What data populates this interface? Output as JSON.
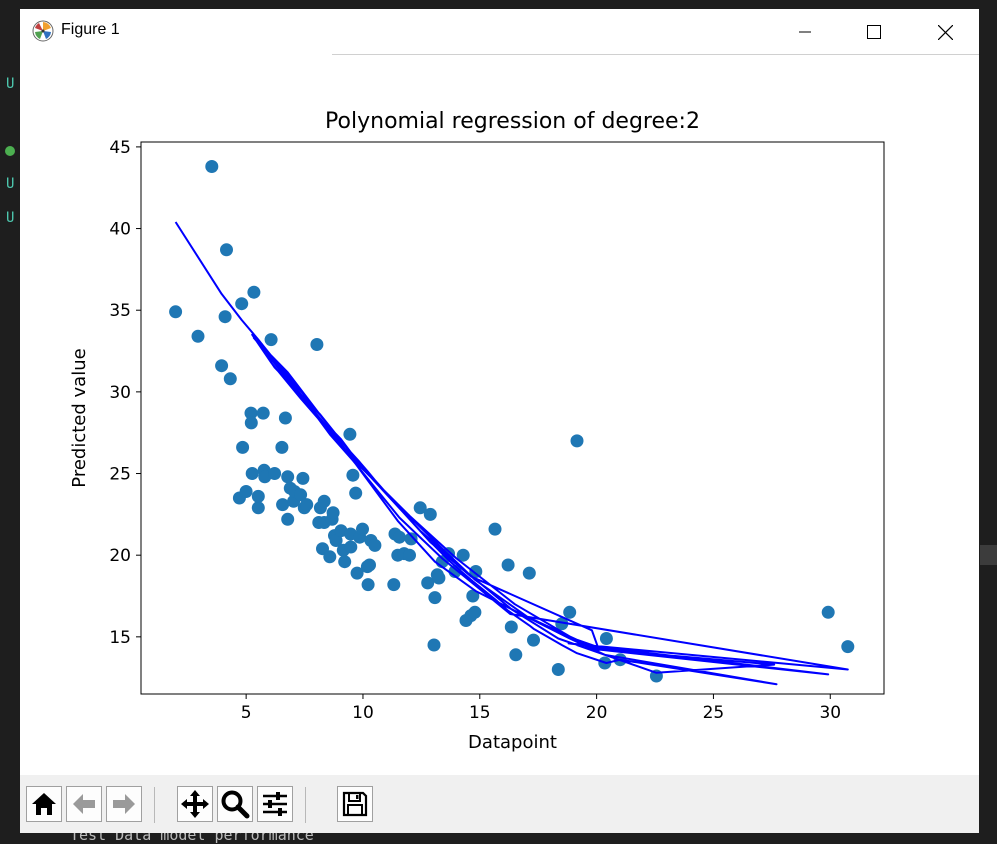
{
  "window": {
    "title": "Figure 1"
  },
  "toolbar": {
    "buttons": [
      "home-icon",
      "back-icon",
      "forward-icon",
      "pan-icon",
      "zoom-icon",
      "configure-icon",
      "save-icon"
    ]
  },
  "background": {
    "gutter_letters": [
      "U",
      "U",
      "U"
    ],
    "bottom_text": "Test Data model performance"
  },
  "colors": {
    "scatter": "#1f77b4",
    "line": "#0000ff",
    "axes": "#000000"
  },
  "chart_data": {
    "type": "scatter",
    "title": "Polynomial regression of degree:2",
    "xlabel": "Datapoint",
    "ylabel": "Predicted value",
    "xlim": [
      0.5,
      32.3
    ],
    "ylim": [
      11.5,
      45.3
    ],
    "xticks": [
      5,
      10,
      15,
      20,
      25,
      30
    ],
    "yticks": [
      15,
      20,
      25,
      30,
      35,
      40,
      45
    ],
    "grid": false,
    "legend": "none",
    "series": [
      {
        "type": "scatter",
        "points": [
          [
            1.98,
            34.9
          ],
          [
            2.94,
            33.4
          ],
          [
            3.53,
            43.8
          ],
          [
            3.95,
            31.6
          ],
          [
            4.1,
            34.6
          ],
          [
            4.16,
            38.7
          ],
          [
            4.32,
            30.8
          ],
          [
            4.81,
            35.4
          ],
          [
            4.85,
            26.6
          ],
          [
            4.71,
            23.5
          ],
          [
            5.0,
            23.9
          ],
          [
            5.21,
            28.7
          ],
          [
            5.22,
            28.1
          ],
          [
            5.26,
            25.0
          ],
          [
            5.33,
            36.1
          ],
          [
            5.52,
            22.9
          ],
          [
            5.52,
            23.6
          ],
          [
            5.73,
            28.7
          ],
          [
            5.77,
            25.2
          ],
          [
            5.8,
            24.8
          ],
          [
            6.07,
            33.2
          ],
          [
            6.22,
            25.0
          ],
          [
            6.53,
            26.6
          ],
          [
            6.56,
            23.1
          ],
          [
            6.68,
            28.4
          ],
          [
            6.78,
            24.8
          ],
          [
            6.78,
            22.2
          ],
          [
            6.89,
            24.1
          ],
          [
            7.03,
            23.3
          ],
          [
            7.07,
            23.9
          ],
          [
            7.33,
            23.7
          ],
          [
            7.43,
            24.7
          ],
          [
            7.49,
            22.9
          ],
          [
            7.59,
            23.1
          ],
          [
            8.03,
            32.9
          ],
          [
            8.11,
            22.0
          ],
          [
            8.18,
            22.9
          ],
          [
            8.27,
            20.4
          ],
          [
            8.34,
            22.0
          ],
          [
            8.34,
            23.3
          ],
          [
            8.58,
            19.9
          ],
          [
            8.68,
            22.2
          ],
          [
            8.72,
            22.6
          ],
          [
            8.78,
            21.2
          ],
          [
            8.85,
            20.9
          ],
          [
            9.06,
            21.5
          ],
          [
            9.16,
            20.3
          ],
          [
            9.22,
            19.6
          ],
          [
            9.44,
            27.4
          ],
          [
            9.48,
            20.5
          ],
          [
            9.47,
            21.3
          ],
          [
            9.57,
            24.9
          ],
          [
            9.69,
            23.8
          ],
          [
            9.75,
            18.9
          ],
          [
            9.86,
            21.1
          ],
          [
            9.98,
            21.6
          ],
          [
            10.19,
            19.3
          ],
          [
            10.22,
            18.2
          ],
          [
            10.28,
            19.4
          ],
          [
            10.34,
            20.9
          ],
          [
            10.51,
            20.6
          ],
          [
            11.32,
            18.2
          ],
          [
            11.37,
            21.3
          ],
          [
            11.49,
            20.0
          ],
          [
            11.56,
            21.1
          ],
          [
            11.76,
            20.1
          ],
          [
            11.99,
            20.0
          ],
          [
            12.06,
            21.0
          ],
          [
            12.45,
            22.9
          ],
          [
            12.77,
            18.3
          ],
          [
            12.88,
            22.5
          ],
          [
            13.04,
            14.5
          ],
          [
            13.08,
            17.4
          ],
          [
            13.18,
            18.8
          ],
          [
            13.25,
            18.6
          ],
          [
            13.39,
            19.6
          ],
          [
            13.66,
            20.1
          ],
          [
            13.94,
            19.0
          ],
          [
            14.29,
            20.0
          ],
          [
            14.41,
            16.0
          ],
          [
            14.62,
            16.3
          ],
          [
            14.7,
            17.5
          ],
          [
            14.79,
            16.5
          ],
          [
            14.83,
            19.0
          ],
          [
            15.65,
            21.6
          ],
          [
            16.21,
            19.4
          ],
          [
            16.35,
            15.6
          ],
          [
            16.54,
            13.9
          ],
          [
            17.12,
            18.9
          ],
          [
            17.3,
            14.8
          ],
          [
            18.36,
            13.0
          ],
          [
            18.51,
            15.8
          ],
          [
            18.85,
            16.5
          ],
          [
            19.16,
            27.0
          ],
          [
            20.35,
            13.4
          ],
          [
            20.42,
            14.9
          ],
          [
            21.01,
            13.6
          ],
          [
            22.56,
            12.6
          ],
          [
            29.91,
            16.5
          ],
          [
            30.75,
            14.4
          ]
        ]
      },
      {
        "type": "line",
        "points": [
          [
            1.98,
            40.4
          ],
          [
            3.95,
            36.0
          ],
          [
            4.81,
            34.4
          ],
          [
            5.52,
            33.2
          ],
          [
            5.8,
            32.7
          ],
          [
            6.53,
            31.4
          ],
          [
            6.68,
            31.2
          ],
          [
            7.07,
            30.5
          ],
          [
            7.43,
            29.9
          ],
          [
            8.03,
            28.8
          ],
          [
            8.34,
            28.3
          ],
          [
            8.72,
            27.6
          ],
          [
            9.06,
            27.1
          ],
          [
            9.48,
            26.3
          ],
          [
            9.86,
            25.7
          ],
          [
            10.22,
            25.1
          ],
          [
            10.51,
            24.6
          ],
          [
            11.37,
            23.2
          ],
          [
            11.76,
            22.6
          ],
          [
            12.06,
            22.1
          ],
          [
            12.77,
            21.0
          ],
          [
            13.18,
            20.4
          ],
          [
            13.66,
            19.7
          ],
          [
            14.29,
            18.9
          ],
          [
            14.7,
            18.4
          ],
          [
            15.65,
            17.3
          ],
          [
            16.21,
            16.6
          ],
          [
            17.12,
            15.7
          ],
          [
            17.3,
            15.5
          ],
          [
            18.51,
            14.5
          ],
          [
            19.16,
            14.0
          ],
          [
            20.42,
            13.4
          ],
          [
            21.01,
            13.6
          ],
          [
            27.7,
            12.1
          ],
          [
            20.35,
            13.9
          ],
          [
            18.85,
            14.9
          ],
          [
            14.83,
            17.8
          ],
          [
            13.08,
            19.6
          ],
          [
            11.49,
            22.1
          ],
          [
            9.22,
            26.5
          ],
          [
            7.33,
            29.6
          ],
          [
            6.07,
            31.8
          ],
          [
            5.26,
            33.5
          ],
          [
            6.22,
            31.5
          ],
          [
            8.18,
            28.6
          ],
          [
            10.19,
            25.0
          ],
          [
            12.45,
            21.5
          ],
          [
            14.41,
            19.0
          ],
          [
            16.35,
            16.7
          ],
          [
            18.36,
            14.9
          ],
          [
            22.56,
            12.8
          ],
          [
            27.6,
            13.3
          ],
          [
            19.6,
            14.3
          ],
          [
            29.91,
            12.7
          ],
          [
            18.8,
            14.6
          ],
          [
            30.75,
            13.0
          ],
          [
            16.3,
            16.4
          ],
          [
            13.39,
            19.8
          ],
          [
            11.56,
            22.3
          ],
          [
            9.57,
            25.8
          ],
          [
            8.58,
            27.4
          ],
          [
            6.78,
            30.9
          ],
          [
            5.33,
            33.3
          ],
          [
            6.78,
            31.2
          ],
          [
            8.27,
            28.4
          ],
          [
            9.98,
            25.4
          ],
          [
            11.32,
            23.3
          ],
          [
            13.25,
            20.6
          ],
          [
            14.79,
            18.5
          ],
          [
            17.06,
            16.2
          ],
          [
            20.1,
            14.2
          ],
          [
            19.8,
            15.4
          ],
          [
            14.62,
            18.7
          ],
          [
            12.88,
            20.8
          ],
          [
            10.28,
            24.9
          ],
          [
            8.78,
            27.2
          ],
          [
            7.49,
            29.6
          ],
          [
            5.73,
            32.6
          ],
          [
            7.03,
            30.3
          ],
          [
            8.68,
            27.5
          ],
          [
            9.69,
            25.7
          ],
          [
            12.0,
            22.4
          ],
          [
            14.0,
            19.8
          ],
          [
            16.5,
            17.0
          ],
          [
            19.0,
            14.9
          ],
          [
            20.4,
            14.2
          ]
        ]
      }
    ]
  }
}
